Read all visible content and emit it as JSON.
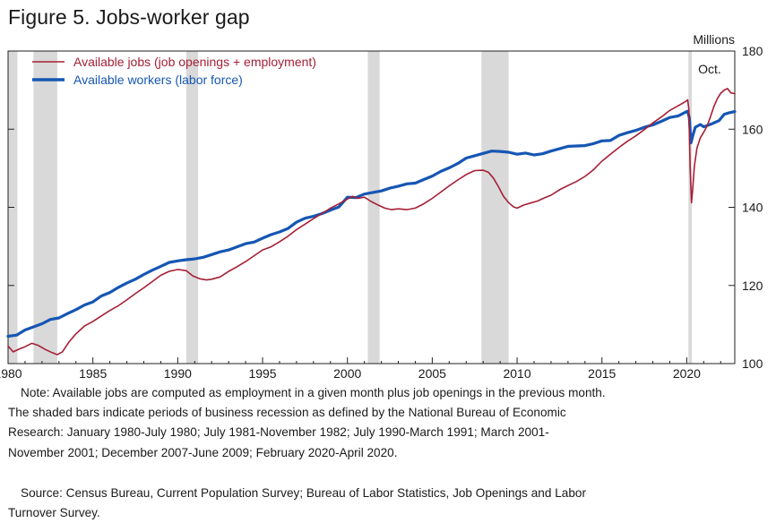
{
  "figure_title": "Figure 5. Jobs-worker gap",
  "note_lines": [
    "Note: Available jobs are computed as employment in a given month plus job openings in the previous month.",
    "The shaded bars indicate periods of business recession as defined by the National Bureau of Economic",
    "Research: January 1980-July 1980; July 1981-November 1982; July 1990-March 1991; March 2001-",
    "November 2001; December 2007-June 2009; February 2020-April 2020."
  ],
  "source_lines": [
    "Source: Census Bureau, Current Population Survey; Bureau of Labor Statistics, Job Openings and Labor",
    "Turnover Survey."
  ],
  "colors": {
    "jobs": "#a51f35",
    "workers": "#1556b3",
    "recession": "#d9d9d9"
  },
  "chart_data": {
    "type": "line",
    "ylabel": "Millions",
    "ylim": [
      100,
      180
    ],
    "yticks": [
      100,
      120,
      140,
      160,
      180
    ],
    "xlim": [
      1980.0,
      2022.83
    ],
    "xticks": [
      1980,
      1985,
      1990,
      1995,
      2000,
      2005,
      2010,
      2015,
      2020
    ],
    "grid": false,
    "legend_position": "top-left",
    "annotation": "Oct.",
    "recessions": [
      {
        "start": 1980.0,
        "end": 1980.55
      },
      {
        "start": 1981.5,
        "end": 1982.9
      },
      {
        "start": 1990.5,
        "end": 1991.2
      },
      {
        "start": 2001.2,
        "end": 2001.9
      },
      {
        "start": 2007.9,
        "end": 2009.5
      },
      {
        "start": 2020.1,
        "end": 2020.3
      }
    ],
    "series": [
      {
        "name": "Available jobs (job openings + employment)",
        "points": [
          [
            1980.0,
            104.5
          ],
          [
            1980.3,
            103.0
          ],
          [
            1980.7,
            103.8
          ],
          [
            1981.0,
            104.3
          ],
          [
            1981.4,
            105.2
          ],
          [
            1981.8,
            104.6
          ],
          [
            1982.2,
            103.6
          ],
          [
            1982.6,
            102.8
          ],
          [
            1982.9,
            102.3
          ],
          [
            1983.2,
            103.0
          ],
          [
            1983.6,
            105.6
          ],
          [
            1984.0,
            107.6
          ],
          [
            1984.5,
            109.6
          ],
          [
            1985.0,
            110.8
          ],
          [
            1985.5,
            112.2
          ],
          [
            1986.0,
            113.6
          ],
          [
            1986.5,
            114.8
          ],
          [
            1987.0,
            116.3
          ],
          [
            1987.5,
            117.9
          ],
          [
            1988.0,
            119.4
          ],
          [
            1988.5,
            121.0
          ],
          [
            1989.0,
            122.6
          ],
          [
            1989.5,
            123.6
          ],
          [
            1990.0,
            124.1
          ],
          [
            1990.5,
            123.8
          ],
          [
            1990.9,
            122.4
          ],
          [
            1991.3,
            121.7
          ],
          [
            1991.7,
            121.4
          ],
          [
            1992.0,
            121.6
          ],
          [
            1992.5,
            122.2
          ],
          [
            1993.0,
            123.6
          ],
          [
            1993.5,
            124.8
          ],
          [
            1994.0,
            126.1
          ],
          [
            1994.5,
            127.6
          ],
          [
            1995.0,
            129.1
          ],
          [
            1995.5,
            129.9
          ],
          [
            1996.0,
            131.2
          ],
          [
            1996.5,
            132.6
          ],
          [
            1997.0,
            134.3
          ],
          [
            1997.5,
            135.7
          ],
          [
            1998.0,
            137.1
          ],
          [
            1998.5,
            138.4
          ],
          [
            1999.0,
            139.8
          ],
          [
            1999.5,
            140.9
          ],
          [
            2000.0,
            142.1
          ],
          [
            2000.3,
            142.8
          ],
          [
            2000.6,
            142.3
          ],
          [
            2001.0,
            142.6
          ],
          [
            2001.4,
            141.5
          ],
          [
            2001.8,
            140.6
          ],
          [
            2002.2,
            139.8
          ],
          [
            2002.6,
            139.4
          ],
          [
            2003.0,
            139.6
          ],
          [
            2003.5,
            139.4
          ],
          [
            2004.0,
            139.8
          ],
          [
            2004.5,
            140.9
          ],
          [
            2005.0,
            142.3
          ],
          [
            2005.5,
            143.9
          ],
          [
            2006.0,
            145.5
          ],
          [
            2006.5,
            147.0
          ],
          [
            2007.0,
            148.4
          ],
          [
            2007.5,
            149.4
          ],
          [
            2008.0,
            149.5
          ],
          [
            2008.3,
            149.0
          ],
          [
            2008.6,
            147.5
          ],
          [
            2008.9,
            145.3
          ],
          [
            2009.2,
            142.8
          ],
          [
            2009.5,
            141.2
          ],
          [
            2009.8,
            140.1
          ],
          [
            2010.0,
            139.8
          ],
          [
            2010.4,
            140.6
          ],
          [
            2010.8,
            141.1
          ],
          [
            2011.2,
            141.6
          ],
          [
            2011.6,
            142.4
          ],
          [
            2012.0,
            143.1
          ],
          [
            2012.5,
            144.5
          ],
          [
            2013.0,
            145.6
          ],
          [
            2013.5,
            146.6
          ],
          [
            2014.0,
            147.9
          ],
          [
            2014.5,
            149.6
          ],
          [
            2015.0,
            151.8
          ],
          [
            2015.5,
            153.6
          ],
          [
            2016.0,
            155.3
          ],
          [
            2016.5,
            156.9
          ],
          [
            2017.0,
            158.3
          ],
          [
            2017.5,
            159.9
          ],
          [
            2018.0,
            161.6
          ],
          [
            2018.5,
            163.1
          ],
          [
            2019.0,
            164.8
          ],
          [
            2019.5,
            166.0
          ],
          [
            2019.9,
            167.0
          ],
          [
            2020.05,
            167.5
          ],
          [
            2020.12,
            165.2
          ],
          [
            2020.2,
            150.0
          ],
          [
            2020.28,
            141.2
          ],
          [
            2020.35,
            144.5
          ],
          [
            2020.45,
            150.5
          ],
          [
            2020.6,
            155.2
          ],
          [
            2020.8,
            157.8
          ],
          [
            2021.0,
            159.2
          ],
          [
            2021.2,
            160.8
          ],
          [
            2021.4,
            163.2
          ],
          [
            2021.6,
            165.8
          ],
          [
            2021.8,
            167.8
          ],
          [
            2022.0,
            169.2
          ],
          [
            2022.2,
            170.0
          ],
          [
            2022.4,
            170.4
          ],
          [
            2022.6,
            169.3
          ],
          [
            2022.83,
            169.1
          ]
        ]
      },
      {
        "name": "Available workers (labor force)",
        "points": [
          [
            1980.0,
            107.0
          ],
          [
            1980.5,
            107.3
          ],
          [
            1981.0,
            108.6
          ],
          [
            1981.5,
            109.4
          ],
          [
            1982.0,
            110.2
          ],
          [
            1982.5,
            111.3
          ],
          [
            1983.0,
            111.7
          ],
          [
            1983.5,
            112.8
          ],
          [
            1984.0,
            113.8
          ],
          [
            1984.5,
            115.0
          ],
          [
            1985.0,
            115.8
          ],
          [
            1985.5,
            117.3
          ],
          [
            1986.0,
            118.2
          ],
          [
            1986.5,
            119.5
          ],
          [
            1987.0,
            120.6
          ],
          [
            1987.5,
            121.6
          ],
          [
            1988.0,
            122.8
          ],
          [
            1988.5,
            123.9
          ],
          [
            1989.0,
            124.9
          ],
          [
            1989.5,
            125.9
          ],
          [
            1990.0,
            126.3
          ],
          [
            1990.5,
            126.6
          ],
          [
            1991.0,
            126.8
          ],
          [
            1991.5,
            127.2
          ],
          [
            1992.0,
            127.9
          ],
          [
            1992.5,
            128.6
          ],
          [
            1993.0,
            129.1
          ],
          [
            1993.5,
            129.9
          ],
          [
            1994.0,
            130.7
          ],
          [
            1994.5,
            131.1
          ],
          [
            1995.0,
            132.1
          ],
          [
            1995.5,
            133.0
          ],
          [
            1996.0,
            133.7
          ],
          [
            1996.5,
            134.6
          ],
          [
            1997.0,
            136.2
          ],
          [
            1997.5,
            137.2
          ],
          [
            1998.0,
            137.7
          ],
          [
            1998.5,
            138.4
          ],
          [
            1999.0,
            139.3
          ],
          [
            1999.5,
            140.1
          ],
          [
            2000.0,
            142.6
          ],
          [
            2000.5,
            142.5
          ],
          [
            2001.0,
            143.4
          ],
          [
            2001.5,
            143.8
          ],
          [
            2002.0,
            144.2
          ],
          [
            2002.5,
            144.9
          ],
          [
            2003.0,
            145.4
          ],
          [
            2003.5,
            146.0
          ],
          [
            2004.0,
            146.2
          ],
          [
            2004.5,
            147.1
          ],
          [
            2005.0,
            148.0
          ],
          [
            2005.5,
            149.2
          ],
          [
            2006.0,
            150.1
          ],
          [
            2006.5,
            151.2
          ],
          [
            2007.0,
            152.6
          ],
          [
            2007.5,
            153.2
          ],
          [
            2008.0,
            153.8
          ],
          [
            2008.5,
            154.4
          ],
          [
            2009.0,
            154.3
          ],
          [
            2009.5,
            154.1
          ],
          [
            2010.0,
            153.6
          ],
          [
            2010.5,
            153.9
          ],
          [
            2011.0,
            153.4
          ],
          [
            2011.5,
            153.7
          ],
          [
            2012.0,
            154.4
          ],
          [
            2012.5,
            155.0
          ],
          [
            2013.0,
            155.6
          ],
          [
            2013.5,
            155.7
          ],
          [
            2014.0,
            155.8
          ],
          [
            2014.5,
            156.3
          ],
          [
            2015.0,
            157.0
          ],
          [
            2015.5,
            157.1
          ],
          [
            2016.0,
            158.4
          ],
          [
            2016.5,
            159.1
          ],
          [
            2017.0,
            159.7
          ],
          [
            2017.5,
            160.5
          ],
          [
            2018.0,
            161.1
          ],
          [
            2018.5,
            162.0
          ],
          [
            2019.0,
            163.0
          ],
          [
            2019.5,
            163.4
          ],
          [
            2019.9,
            164.3
          ],
          [
            2020.05,
            164.6
          ],
          [
            2020.15,
            162.9
          ],
          [
            2020.25,
            156.5
          ],
          [
            2020.35,
            158.2
          ],
          [
            2020.5,
            160.5
          ],
          [
            2020.8,
            161.2
          ],
          [
            2021.0,
            160.6
          ],
          [
            2021.5,
            161.4
          ],
          [
            2021.9,
            162.2
          ],
          [
            2022.2,
            163.8
          ],
          [
            2022.5,
            164.2
          ],
          [
            2022.83,
            164.5
          ]
        ]
      }
    ]
  }
}
